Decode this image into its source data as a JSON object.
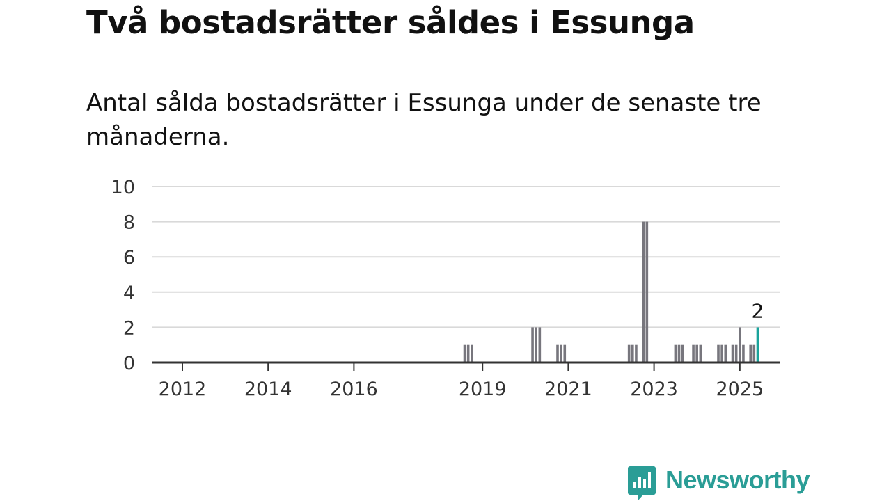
{
  "title": "Två bostadsrätter såldes i Essunga",
  "subtitle": "Antal sålda bostadsrätter i Essunga under de senaste tre månaderna.",
  "brand": {
    "name": "Newsworthy",
    "logo_icon": "bar-chart-speech-bubble-icon"
  },
  "colors": {
    "bar": "#77767d",
    "highlight": "#1aa39b",
    "grid": "#d9d9d9",
    "axis": "#333333",
    "brand": "#2a9d96"
  },
  "chart_data": {
    "type": "bar",
    "title": "Två bostadsrätter såldes i Essunga",
    "xlabel": "",
    "ylabel": "",
    "ylim": [
      0,
      10
    ],
    "yticks": [
      0,
      2,
      4,
      6,
      8,
      10
    ],
    "xticks": [
      "2012",
      "2014",
      "2016",
      "2019",
      "2021",
      "2023",
      "2025"
    ],
    "grid": true,
    "x_unit": "month",
    "categories": [
      "2018-08",
      "2018-09",
      "2018-10",
      "2020-03",
      "2020-04",
      "2020-05",
      "2020-10",
      "2020-11",
      "2020-12",
      "2022-06",
      "2022-07",
      "2022-08",
      "2022-10",
      "2022-11",
      "2023-07",
      "2023-08",
      "2023-09",
      "2023-12",
      "2024-01",
      "2024-02",
      "2024-07",
      "2024-08",
      "2024-09",
      "2024-11",
      "2024-12",
      "2025-01",
      "2025-02",
      "2025-04",
      "2025-05",
      "2025-06"
    ],
    "values": [
      1,
      1,
      1,
      2,
      2,
      2,
      1,
      1,
      1,
      1,
      1,
      1,
      8,
      8,
      1,
      1,
      1,
      1,
      1,
      1,
      1,
      1,
      1,
      1,
      1,
      2,
      1,
      1,
      1,
      2
    ],
    "highlight": {
      "category": "2025-06",
      "value": 2,
      "label": "2"
    }
  }
}
